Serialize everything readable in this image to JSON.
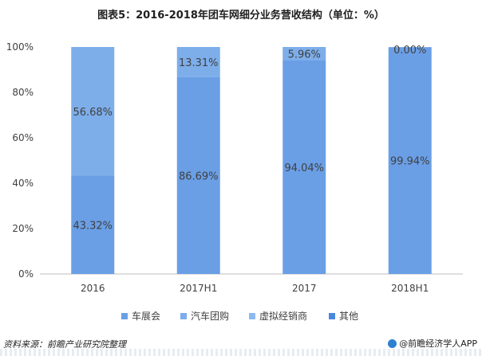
{
  "chart_data": {
    "type": "bar",
    "stacked": true,
    "title": "图表5：2016-2018年团车网细分业务营收结构（单位：%）",
    "categories": [
      "2016",
      "2017H1",
      "2017",
      "2018H1"
    ],
    "series": [
      {
        "name": "车展会",
        "values": [
          43.32,
          86.69,
          94.04,
          99.94
        ],
        "labels": [
          "43.32%",
          "86.69%",
          "94.04%",
          "99.94%"
        ],
        "color": "#6a9fe6"
      },
      {
        "name": "汽车团购",
        "values": [
          56.68,
          13.31,
          5.96,
          0.0
        ],
        "labels": [
          "56.68%",
          "13.31%",
          "5.96%",
          "0.00%"
        ],
        "color": "#7daeea"
      },
      {
        "name": "虚拟经销商",
        "values": [
          0,
          0,
          0,
          0
        ],
        "color": "#8cb8ee"
      },
      {
        "name": "其他",
        "values": [
          0,
          0,
          0,
          0
        ],
        "color": "#4a87dc"
      }
    ],
    "yticks": [
      "0%",
      "20%",
      "40%",
      "60%",
      "80%",
      "100%"
    ],
    "ylim": [
      0,
      100
    ],
    "grid": false,
    "legend_position": "bottom"
  },
  "footer": {
    "source": "资料来源：前瞻产业研究院整理",
    "brand": "@前瞻经济学人APP"
  },
  "colors": {
    "axis": "#bfbfbf",
    "text": "#404040"
  }
}
